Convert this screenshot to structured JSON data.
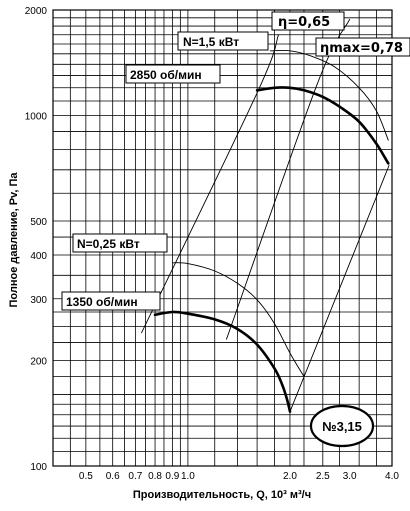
{
  "chart_data": {
    "type": "line",
    "title": "",
    "xlabel": "Производительность, Q, 10³ м³/ч",
    "ylabel": "Полное давление, Pv, Па",
    "x_scale": "log",
    "y_scale": "log",
    "xlim": [
      0.4,
      4.0
    ],
    "ylim": [
      100,
      2000
    ],
    "x_ticks": [
      {
        "value": 0.5,
        "label": "0.5"
      },
      {
        "value": 0.6,
        "label": "0.6"
      },
      {
        "value": 0.7,
        "label": "0.7"
      },
      {
        "value": 0.8,
        "label": "0.8"
      },
      {
        "value": 0.9,
        "label": "0.9"
      },
      {
        "value": 1.0,
        "label": "1.0"
      },
      {
        "value": 2.0,
        "label": "2.0"
      },
      {
        "value": 2.5,
        "label": "2.5"
      },
      {
        "value": 3.0,
        "label": "3.0"
      },
      {
        "value": 4.0,
        "label": "4.0"
      }
    ],
    "y_ticks": [
      {
        "value": 100,
        "label": "100"
      },
      {
        "value": 200,
        "label": "200"
      },
      {
        "value": 300,
        "label": "300"
      },
      {
        "value": 400,
        "label": "400"
      },
      {
        "value": 500,
        "label": "500"
      },
      {
        "value": 1000,
        "label": "1000"
      },
      {
        "value": 2000,
        "label": "2000"
      }
    ],
    "x_grid": [
      0.45,
      0.5,
      0.55,
      0.6,
      0.65,
      0.7,
      0.75,
      0.8,
      0.85,
      0.9,
      0.95,
      1.0,
      1.2,
      1.4,
      1.6,
      1.8,
      2.0,
      2.2,
      2.5,
      2.8,
      3.2,
      3.6
    ],
    "y_grid": [
      110,
      120,
      130,
      140,
      150,
      160,
      180,
      200,
      225,
      250,
      275,
      300,
      350,
      400,
      450,
      500,
      600,
      700,
      800,
      900,
      1000,
      1100,
      1200,
      1300,
      1400,
      1500,
      1600,
      1700,
      1800,
      1900
    ],
    "grid": true,
    "series": [
      {
        "name": "2850 об/мин",
        "role": "operating",
        "points": [
          [
            1.6,
            1180
          ],
          [
            1.8,
            1200
          ],
          [
            2.0,
            1200
          ],
          [
            2.2,
            1180
          ],
          [
            2.5,
            1130
          ],
          [
            2.8,
            1060
          ],
          [
            3.2,
            960
          ],
          [
            3.6,
            830
          ],
          [
            3.9,
            730
          ]
        ]
      },
      {
        "name": "1350 об/мин",
        "role": "operating",
        "points": [
          [
            0.8,
            270
          ],
          [
            0.9,
            275
          ],
          [
            1.0,
            272
          ],
          [
            1.2,
            262
          ],
          [
            1.4,
            246
          ],
          [
            1.6,
            222
          ],
          [
            1.8,
            190
          ],
          [
            1.9,
            170
          ],
          [
            1.96,
            155
          ],
          [
            2.0,
            143
          ]
        ]
      },
      {
        "name": "N=1,5 кВт",
        "role": "power",
        "points": [
          [
            1.75,
            1530
          ],
          [
            2.0,
            1530
          ],
          [
            2.3,
            1480
          ],
          [
            2.7,
            1380
          ],
          [
            3.2,
            1200
          ],
          [
            3.6,
            1030
          ],
          [
            3.9,
            850
          ]
        ]
      },
      {
        "name": "N=0,25 кВт",
        "role": "power",
        "points": [
          [
            0.9,
            380
          ],
          [
            1.0,
            378
          ],
          [
            1.2,
            360
          ],
          [
            1.4,
            332
          ],
          [
            1.6,
            298
          ],
          [
            1.8,
            255
          ],
          [
            2.0,
            210
          ],
          [
            2.2,
            180
          ]
        ]
      },
      {
        "name": "η=0,65",
        "role": "efficiency",
        "points": [
          [
            0.73,
            240
          ],
          [
            1.6,
            1160
          ],
          [
            1.85,
            1700
          ]
        ]
      },
      {
        "name": "η=0,65",
        "role": "efficiency",
        "points": [
          [
            2.0,
            143
          ],
          [
            3.92,
            720
          ]
        ]
      },
      {
        "name": "ηmax=0,78",
        "role": "efficiency",
        "points": [
          [
            1.3,
            230
          ],
          [
            2.4,
            1220
          ],
          [
            3.0,
            1880
          ]
        ]
      }
    ],
    "annotations": [
      {
        "id": "eta",
        "text": "η=0,65"
      },
      {
        "id": "n15",
        "text": "N=1,5 кВт"
      },
      {
        "id": "etamax",
        "text": "ηmax=0,78"
      },
      {
        "id": "rpm2850",
        "text": "2850 об/мин"
      },
      {
        "id": "n025",
        "text": "N=0,25 кВт"
      },
      {
        "id": "rpm1350",
        "text": "1350 об/мин"
      },
      {
        "id": "badge",
        "text": "№3,15"
      }
    ]
  }
}
